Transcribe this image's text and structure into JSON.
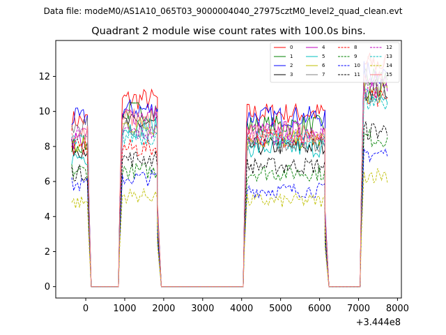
{
  "suptitle": "Data file: modeM0/AS1A10_065T03_9000004040_27975cztM0_level2_quad_clean.evt",
  "chart_data": {
    "type": "line",
    "title": "Quadrant 2 module wise count rates with 100.0s bins.",
    "xlabel": "",
    "ylabel": "",
    "x_offset_label": "+3.444e8",
    "xlim": [
      -770,
      8100
    ],
    "ylim": [
      -0.65,
      14.05
    ],
    "xticks": [
      0,
      1000,
      2000,
      3000,
      4000,
      5000,
      6000,
      7000,
      8000
    ],
    "yticks": [
      0,
      2,
      4,
      6,
      8,
      10,
      12
    ],
    "legend_location": "upper right",
    "legend_columns": 4,
    "segments": [
      {
        "from": -360,
        "to": 40,
        "kind": "on"
      },
      {
        "from": 90,
        "to": 140,
        "kind": "drop"
      },
      {
        "from": 140,
        "to": 840,
        "kind": "zero"
      },
      {
        "from": 840,
        "to": 940,
        "kind": "rise"
      },
      {
        "from": 940,
        "to": 1840,
        "kind": "on"
      },
      {
        "from": 1840,
        "to": 1940,
        "kind": "drop"
      },
      {
        "from": 1940,
        "to": 4040,
        "kind": "zero"
      },
      {
        "from": 4040,
        "to": 4140,
        "kind": "rise"
      },
      {
        "from": 4140,
        "to": 6140,
        "kind": "on"
      },
      {
        "from": 6140,
        "to": 6240,
        "kind": "drop"
      },
      {
        "from": 6240,
        "to": 7040,
        "kind": "zero"
      },
      {
        "from": 7040,
        "to": 7140,
        "kind": "rise"
      },
      {
        "from": 7140,
        "to": 7740,
        "kind": "on"
      }
    ],
    "series": [
      {
        "name": "0",
        "color": "#ff0000",
        "dash": "solid",
        "levels": [
          9.5,
          10.7,
          9.9,
          12.7
        ]
      },
      {
        "name": "1",
        "color": "#008000",
        "dash": "solid",
        "levels": [
          8.1,
          10.0,
          9.2,
          11.9
        ]
      },
      {
        "name": "2",
        "color": "#0000ff",
        "dash": "solid",
        "levels": [
          9.6,
          10.1,
          9.7,
          12.2
        ]
      },
      {
        "name": "3",
        "color": "#000000",
        "dash": "solid",
        "levels": [
          7.9,
          9.3,
          8.0,
          11.3
        ]
      },
      {
        "name": "4",
        "color": "#bf00bf",
        "dash": "solid",
        "levels": [
          8.4,
          9.8,
          8.9,
          11.6
        ]
      },
      {
        "name": "5",
        "color": "#00bfbf",
        "dash": "solid",
        "levels": [
          7.4,
          9.1,
          7.9,
          10.8
        ]
      },
      {
        "name": "6",
        "color": "#bfbf00",
        "dash": "solid",
        "levels": [
          8.0,
          9.2,
          8.4,
          11.1
        ]
      },
      {
        "name": "7",
        "color": "#808080",
        "dash": "solid",
        "levels": [
          9.1,
          9.0,
          8.2,
          11.2
        ]
      },
      {
        "name": "8",
        "color": "#ff0000",
        "dash": "dashed",
        "levels": [
          7.9,
          7.9,
          8.5,
          10.6
        ]
      },
      {
        "name": "9",
        "color": "#008000",
        "dash": "dashed",
        "levels": [
          6.6,
          6.6,
          6.5,
          8.5
        ]
      },
      {
        "name": "10",
        "color": "#0000ff",
        "dash": "dashed",
        "levels": [
          5.8,
          6.2,
          5.5,
          7.6
        ]
      },
      {
        "name": "11",
        "color": "#000000",
        "dash": "dashed",
        "levels": [
          6.5,
          7.3,
          6.9,
          8.9
        ]
      },
      {
        "name": "12",
        "color": "#bf00bf",
        "dash": "dashed",
        "levels": [
          8.6,
          8.8,
          8.6,
          11.4
        ]
      },
      {
        "name": "13",
        "color": "#00bfbf",
        "dash": "dashed",
        "levels": [
          8.3,
          8.6,
          8.4,
          10.6
        ]
      },
      {
        "name": "14",
        "color": "#bfbf00",
        "dash": "dashed",
        "levels": [
          4.8,
          5.2,
          4.9,
          6.4
        ]
      },
      {
        "name": "15",
        "color": "#ff8080",
        "dash": "solid",
        "levels": [
          8.7,
          9.6,
          8.8,
          12.5
        ]
      }
    ]
  }
}
